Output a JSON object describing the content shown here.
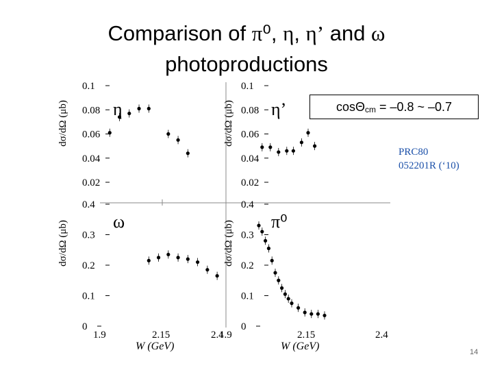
{
  "title": {
    "line1_prefix": "Comparison of ",
    "sym_pi0": "π⁰",
    "sep1": ", ",
    "sym_eta": "η",
    "sep2": ", ",
    "sym_etap": "η’",
    "and": " and ",
    "sym_omega": "ω",
    "line2": "photoproductions"
  },
  "condition": {
    "prefix": "cosΘ",
    "subscript": "cm",
    "suffix": " = –0.8 ~ –0.7"
  },
  "reference": {
    "line1": "PRC80",
    "line2": "052201R (‘10)"
  },
  "page_number": "14",
  "colors": {
    "points": "#000000",
    "reference": "#1a4fa8"
  },
  "chart_data": [
    {
      "type": "scatter",
      "panel": "top-left",
      "label": "η",
      "ylabel": "dσ/dΩ (μb)",
      "yticks": [
        "0.1",
        "0.08",
        "0.06",
        "0.04",
        "0.02"
      ],
      "ylim": [
        0.02,
        0.1
      ],
      "x": [
        1.925,
        1.95,
        1.975,
        2.0,
        2.025,
        2.075,
        2.1,
        2.125
      ],
      "y": [
        0.061,
        0.074,
        0.077,
        0.081,
        0.081,
        0.06,
        0.055,
        0.044
      ]
    },
    {
      "type": "scatter",
      "panel": "top-right",
      "label": "η’",
      "ylabel": "dσ/dΩ (μb)",
      "yticks": [
        "0.1",
        "0.08",
        "0.06",
        "0.04",
        "0.02"
      ],
      "ylim": [
        0.02,
        0.1
      ],
      "x": [
        2.01,
        2.035,
        2.06,
        2.085,
        2.105,
        2.13,
        2.15,
        2.17
      ],
      "y": [
        0.049,
        0.049,
        0.045,
        0.046,
        0.046,
        0.053,
        0.061,
        0.05
      ]
    },
    {
      "type": "scatter",
      "panel": "bottom-left",
      "label": "ω",
      "ylabel": "dσ/dΩ (μb)",
      "yticks": [
        "0.4",
        "0.3",
        "0.2",
        "0.1",
        "0"
      ],
      "ylim": [
        0,
        0.4
      ],
      "xlim": [
        1.9,
        2.4
      ],
      "xticks": [
        "1.9",
        "2.15",
        "2.4"
      ],
      "xlabel": "W (GeV)",
      "x": [
        2.025,
        2.05,
        2.075,
        2.1,
        2.125,
        2.15,
        2.175,
        2.2
      ],
      "y": [
        0.215,
        0.225,
        0.235,
        0.225,
        0.22,
        0.21,
        0.185,
        0.165
      ]
    },
    {
      "type": "scatter",
      "panel": "bottom-right",
      "label": "π⁰",
      "ylabel": "dσ/dΩ (μb)",
      "yticks": [
        "0.4",
        "0.3",
        "0.2",
        "0.1",
        "0"
      ],
      "ylim": [
        0,
        0.4
      ],
      "xlim": [
        1.9,
        2.4
      ],
      "xticks": [
        "1.9",
        "2.15",
        "2.4"
      ],
      "xlabel": "W (GeV)",
      "x": [
        2.0,
        2.01,
        2.02,
        2.03,
        2.04,
        2.05,
        2.06,
        2.07,
        2.08,
        2.09,
        2.1,
        2.12,
        2.14,
        2.16,
        2.18,
        2.2
      ],
      "y": [
        0.33,
        0.31,
        0.28,
        0.255,
        0.215,
        0.175,
        0.15,
        0.125,
        0.105,
        0.09,
        0.075,
        0.06,
        0.045,
        0.04,
        0.04,
        0.035
      ]
    }
  ]
}
